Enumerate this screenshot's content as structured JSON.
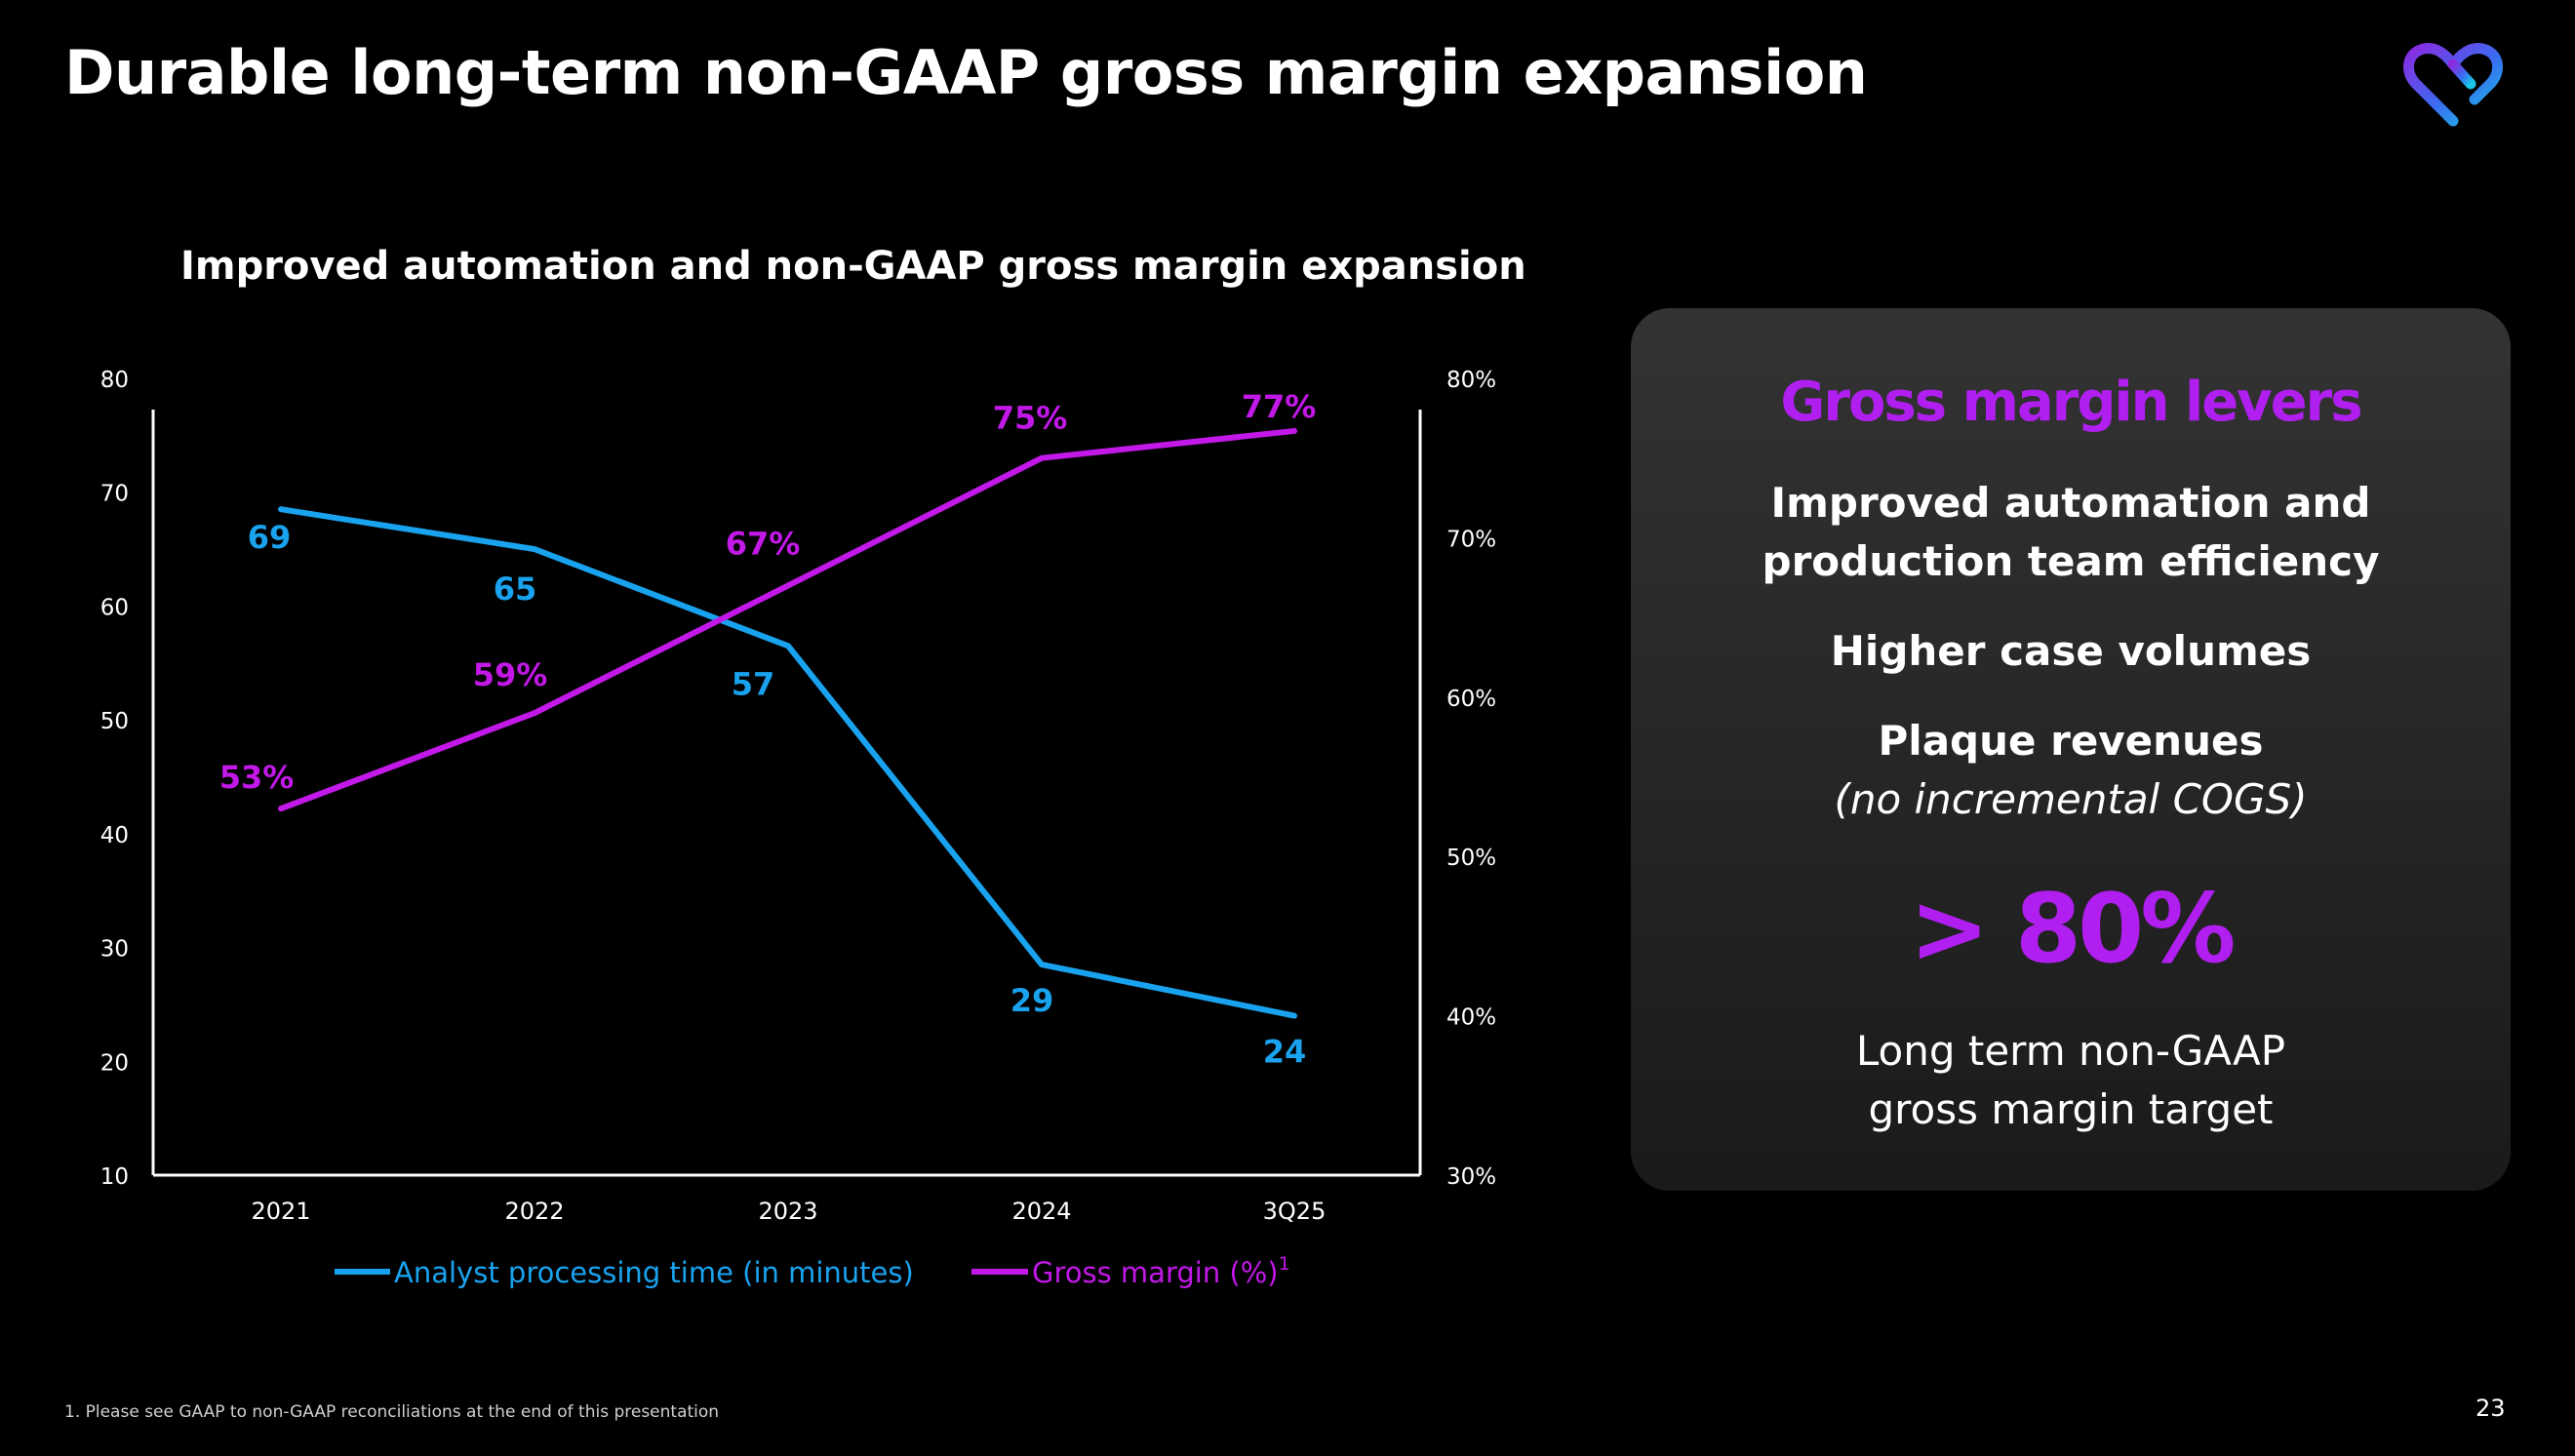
{
  "slide": {
    "title": "Durable long-term non-GAAP gross margin expansion",
    "footnote": "1. Please see GAAP to non-GAAP reconciliations at the end of this presentation",
    "page_number": "23"
  },
  "chart_data": {
    "type": "line",
    "title": "Improved automation and non-GAAP gross margin expansion",
    "categories": [
      "2021",
      "2022",
      "2023",
      "2024",
      "3Q25"
    ],
    "y_left": {
      "min": 10,
      "max": 80,
      "ticks": [
        "10",
        "20",
        "30",
        "40",
        "50",
        "60",
        "70",
        "80"
      ]
    },
    "y_right": {
      "min": 30,
      "max": 80,
      "ticks": [
        "30%",
        "40%",
        "50%",
        "60%",
        "70%",
        "80%"
      ]
    },
    "series": [
      {
        "name": "Analyst processing time (in minutes)",
        "axis": "left",
        "color": "#19a3ef",
        "values": [
          68.5,
          65,
          56.5,
          28.5,
          24
        ],
        "labels": [
          "69",
          "65",
          "57",
          "29",
          "24"
        ]
      },
      {
        "name": "Gross margin (%)",
        "superscript": "1",
        "axis": "right",
        "color": "#c218e8",
        "values": [
          53,
          59,
          67,
          75,
          76.7
        ],
        "labels": [
          "53%",
          "59%",
          "67%",
          "75%",
          "77%"
        ]
      }
    ],
    "legend_position": "bottom"
  },
  "levers": {
    "title": "Gross margin levers",
    "item1_line1": "Improved automation and",
    "item1_line2": "production team efficiency",
    "item2": "Higher case volumes",
    "item3": "Plaque revenues",
    "item3_note": "(no incremental COGS)",
    "target_value": "> 80%",
    "target_line1": "Long term non-GAAP",
    "target_line2": "gross margin target"
  },
  "colors": {
    "accent_purple": "#b01ff0",
    "series_blue": "#19a3ef",
    "series_magenta": "#c218e8"
  }
}
